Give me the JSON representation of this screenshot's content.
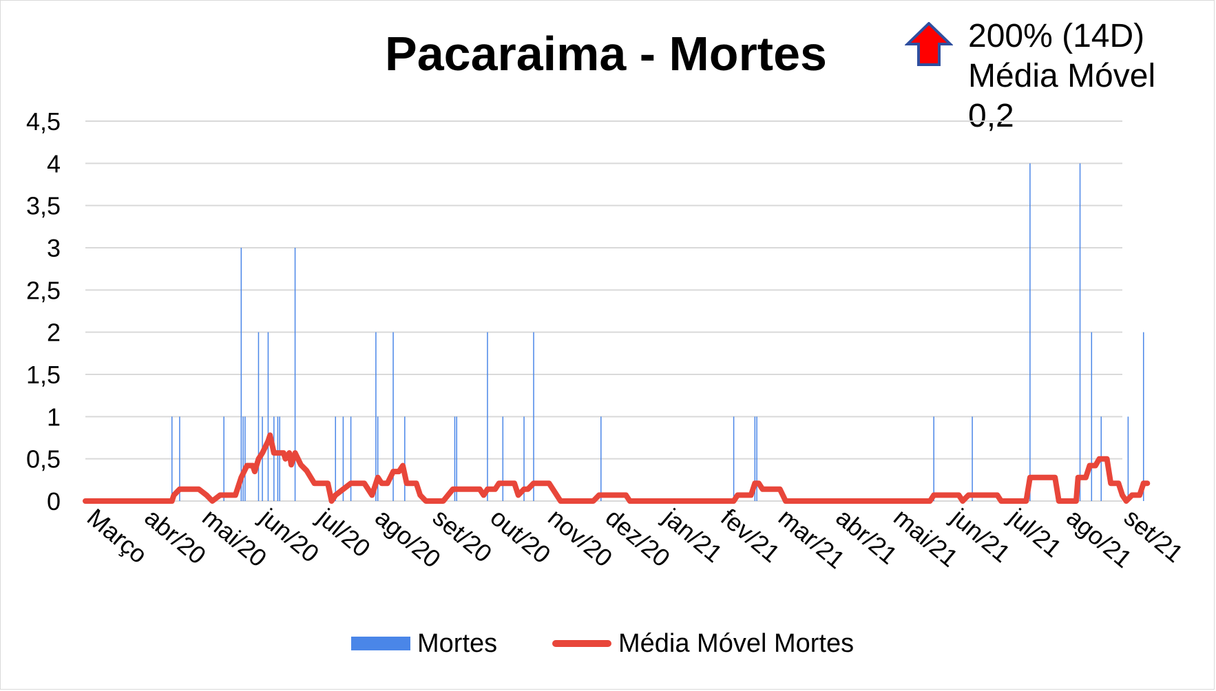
{
  "chart_data": {
    "type": "bar+line",
    "title": "Pacaraima - Mortes",
    "annotation": {
      "icon": "red-up-arrow-icon",
      "lines": [
        "200% (14D)",
        "Média Móvel",
        "0,2"
      ]
    },
    "ylim": [
      0,
      4.5
    ],
    "yticks": [
      "0",
      "0,5",
      "1",
      "1,5",
      "2",
      "2,5",
      "3",
      "3,5",
      "4",
      "4,5"
    ],
    "xticks": [
      "Março",
      "abr/20",
      "mai/20",
      "jun/20",
      "jul/20",
      "ago/20",
      "set/20",
      "out/20",
      "nov/20",
      "dez/20",
      "jan/21",
      "fev/21",
      "mar/21",
      "abr/21",
      "mai/21",
      "jun/21",
      "jul/21",
      "ago/21",
      "set/21"
    ],
    "x_start": "2020-03-17",
    "x_end": "2021-09-07",
    "grid": true,
    "legend_position": "bottom",
    "colors": {
      "bars": "#4a86e8",
      "line": "#e8463a",
      "grid": "#d9d9d9"
    },
    "series": [
      {
        "name": "Mortes",
        "type": "bar",
        "points": [
          [
            "2020-05-01",
            1
          ],
          [
            "2020-05-05",
            1
          ],
          [
            "2020-05-28",
            1
          ],
          [
            "2020-06-06",
            3
          ],
          [
            "2020-06-07",
            1
          ],
          [
            "2020-06-08",
            1
          ],
          [
            "2020-06-15",
            2
          ],
          [
            "2020-06-17",
            1
          ],
          [
            "2020-06-20",
            2
          ],
          [
            "2020-06-23",
            1
          ],
          [
            "2020-06-25",
            1
          ],
          [
            "2020-06-26",
            1
          ],
          [
            "2020-07-04",
            3
          ],
          [
            "2020-07-25",
            1
          ],
          [
            "2020-07-29",
            1
          ],
          [
            "2020-08-02",
            1
          ],
          [
            "2020-08-15",
            2
          ],
          [
            "2020-08-16",
            1
          ],
          [
            "2020-08-24",
            2
          ],
          [
            "2020-08-30",
            1
          ],
          [
            "2020-09-25",
            1
          ],
          [
            "2020-09-26",
            1
          ],
          [
            "2020-10-12",
            2
          ],
          [
            "2020-10-20",
            1
          ],
          [
            "2020-10-31",
            1
          ],
          [
            "2020-11-05",
            2
          ],
          [
            "2020-12-10",
            1
          ],
          [
            "2021-02-17",
            1
          ],
          [
            "2021-02-28",
            1
          ],
          [
            "2021-03-01",
            1
          ],
          [
            "2021-06-01",
            1
          ],
          [
            "2021-06-21",
            1
          ],
          [
            "2021-07-21",
            4
          ],
          [
            "2021-08-16",
            4
          ],
          [
            "2021-08-22",
            2
          ],
          [
            "2021-08-27",
            1
          ],
          [
            "2021-09-10",
            1
          ],
          [
            "2021-09-18",
            2
          ]
        ]
      },
      {
        "name": "Média Móvel Mortes",
        "type": "line",
        "points": [
          [
            "2020-03-17",
            0
          ],
          [
            "2020-05-01",
            0
          ],
          [
            "2020-05-02",
            0.07
          ],
          [
            "2020-05-05",
            0.14
          ],
          [
            "2020-05-15",
            0.14
          ],
          [
            "2020-05-19",
            0.07
          ],
          [
            "2020-05-22",
            0
          ],
          [
            "2020-05-26",
            0.07
          ],
          [
            "2020-06-03",
            0.07
          ],
          [
            "2020-06-06",
            0.28
          ],
          [
            "2020-06-09",
            0.42
          ],
          [
            "2020-06-12",
            0.42
          ],
          [
            "2020-06-13",
            0.35
          ],
          [
            "2020-06-15",
            0.5
          ],
          [
            "2020-06-17",
            0.57
          ],
          [
            "2020-06-20",
            0.71
          ],
          [
            "2020-06-21",
            0.78
          ],
          [
            "2020-06-23",
            0.57
          ],
          [
            "2020-06-28",
            0.57
          ],
          [
            "2020-06-29",
            0.5
          ],
          [
            "2020-07-01",
            0.57
          ],
          [
            "2020-07-02",
            0.43
          ],
          [
            "2020-07-04",
            0.57
          ],
          [
            "2020-07-07",
            0.43
          ],
          [
            "2020-07-10",
            0.36
          ],
          [
            "2020-07-14",
            0.21
          ],
          [
            "2020-07-21",
            0.21
          ],
          [
            "2020-07-23",
            0
          ],
          [
            "2020-07-25",
            0.07
          ],
          [
            "2020-07-29",
            0.14
          ],
          [
            "2020-08-02",
            0.21
          ],
          [
            "2020-08-09",
            0.21
          ],
          [
            "2020-08-11",
            0.14
          ],
          [
            "2020-08-13",
            0.07
          ],
          [
            "2020-08-16",
            0.28
          ],
          [
            "2020-08-18",
            0.21
          ],
          [
            "2020-08-21",
            0.21
          ],
          [
            "2020-08-24",
            0.35
          ],
          [
            "2020-08-27",
            0.35
          ],
          [
            "2020-08-29",
            0.42
          ],
          [
            "2020-08-31",
            0.21
          ],
          [
            "2020-09-05",
            0.21
          ],
          [
            "2020-09-07",
            0.07
          ],
          [
            "2020-09-10",
            0
          ],
          [
            "2020-09-19",
            0
          ],
          [
            "2020-09-24",
            0.14
          ],
          [
            "2020-10-08",
            0.14
          ],
          [
            "2020-10-10",
            0.07
          ],
          [
            "2020-10-12",
            0.14
          ],
          [
            "2020-10-16",
            0.14
          ],
          [
            "2020-10-18",
            0.21
          ],
          [
            "2020-10-26",
            0.21
          ],
          [
            "2020-10-28",
            0.07
          ],
          [
            "2020-10-31",
            0.14
          ],
          [
            "2020-11-02",
            0.14
          ],
          [
            "2020-11-05",
            0.21
          ],
          [
            "2020-11-13",
            0.21
          ],
          [
            "2020-11-15",
            0.14
          ],
          [
            "2020-11-19",
            0
          ],
          [
            "2020-12-06",
            0
          ],
          [
            "2020-12-09",
            0.07
          ],
          [
            "2020-12-23",
            0.07
          ],
          [
            "2020-12-25",
            0
          ],
          [
            "2021-02-17",
            0
          ],
          [
            "2021-02-19",
            0.07
          ],
          [
            "2021-02-26",
            0.07
          ],
          [
            "2021-02-28",
            0.21
          ],
          [
            "2021-03-02",
            0.21
          ],
          [
            "2021-03-04",
            0.14
          ],
          [
            "2021-03-13",
            0.14
          ],
          [
            "2021-03-16",
            0
          ],
          [
            "2021-05-30",
            0
          ],
          [
            "2021-06-01",
            0.07
          ],
          [
            "2021-06-14",
            0.07
          ],
          [
            "2021-06-16",
            0
          ],
          [
            "2021-06-19",
            0.07
          ],
          [
            "2021-07-04",
            0.07
          ],
          [
            "2021-07-06",
            0
          ],
          [
            "2021-07-19",
            0
          ],
          [
            "2021-07-21",
            0.28
          ],
          [
            "2021-08-03",
            0.28
          ],
          [
            "2021-08-05",
            0
          ],
          [
            "2021-08-14",
            0
          ],
          [
            "2021-08-15",
            0.28
          ],
          [
            "2021-08-19",
            0.28
          ],
          [
            "2021-08-21",
            0.42
          ],
          [
            "2021-08-24",
            0.42
          ],
          [
            "2021-08-26",
            0.5
          ],
          [
            "2021-08-30",
            0.5
          ],
          [
            "2021-09-01",
            0.21
          ],
          [
            "2021-09-05",
            0.21
          ],
          [
            "2021-09-07",
            0.07
          ],
          [
            "2021-09-09",
            0
          ],
          [
            "2021-09-12",
            0.07
          ],
          [
            "2021-09-16",
            0.07
          ],
          [
            "2021-09-18",
            0.21
          ],
          [
            "2021-09-20",
            0.21
          ]
        ]
      }
    ]
  }
}
